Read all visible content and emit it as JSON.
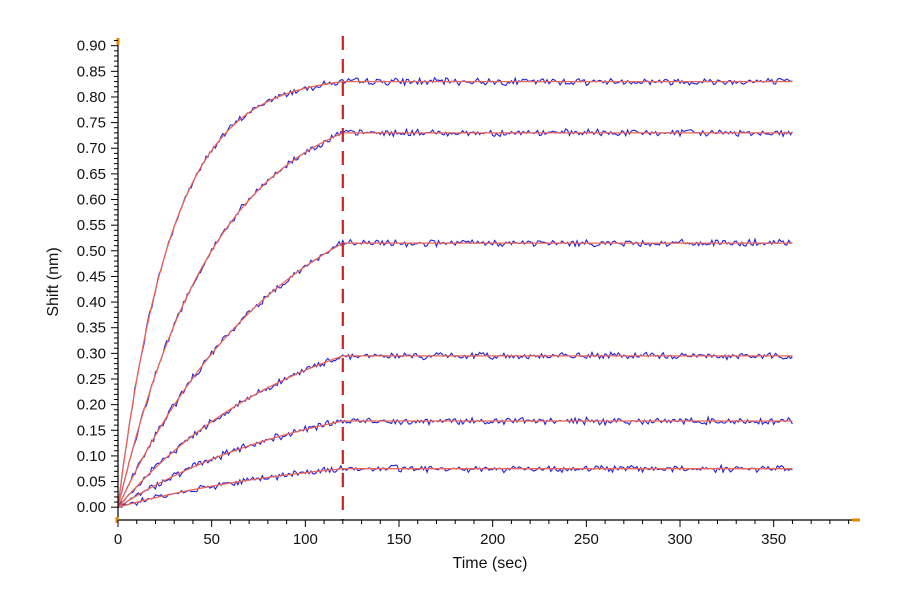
{
  "chart_data": {
    "type": "line",
    "xlabel": "Time (sec)",
    "ylabel": "Shift (nm)",
    "xlim": [
      0,
      395
    ],
    "ylim": [
      -0.025,
      0.915
    ],
    "x_ticks": [
      "0",
      "50",
      "100",
      "150",
      "200",
      "250",
      "300",
      "350"
    ],
    "y_ticks": [
      "0.00",
      "0.05",
      "0.10",
      "0.15",
      "0.20",
      "0.25",
      "0.30",
      "0.35",
      "0.40",
      "0.45",
      "0.50",
      "0.55",
      "0.60",
      "0.65",
      "0.70",
      "0.75",
      "0.80",
      "0.85",
      "0.90"
    ],
    "association_end_x": 120,
    "x_max_data": 360,
    "grid": false,
    "legend": "none",
    "colors": {
      "measured": "#2222dd",
      "fit": "#ee6655",
      "marker": "#cc2222",
      "axis": "#000000",
      "axis_end": "#e08a00"
    },
    "series": [
      {
        "plateau": 0.83,
        "initial_slope": 0.029
      },
      {
        "plateau": 0.73,
        "initial_slope": 0.014
      },
      {
        "plateau": 0.515,
        "initial_slope": 0.0058
      },
      {
        "plateau": 0.295,
        "initial_slope": 0.003
      },
      {
        "plateau": 0.168,
        "initial_slope": 0.0016
      },
      {
        "plateau": 0.075,
        "initial_slope": 0.00066
      }
    ]
  }
}
